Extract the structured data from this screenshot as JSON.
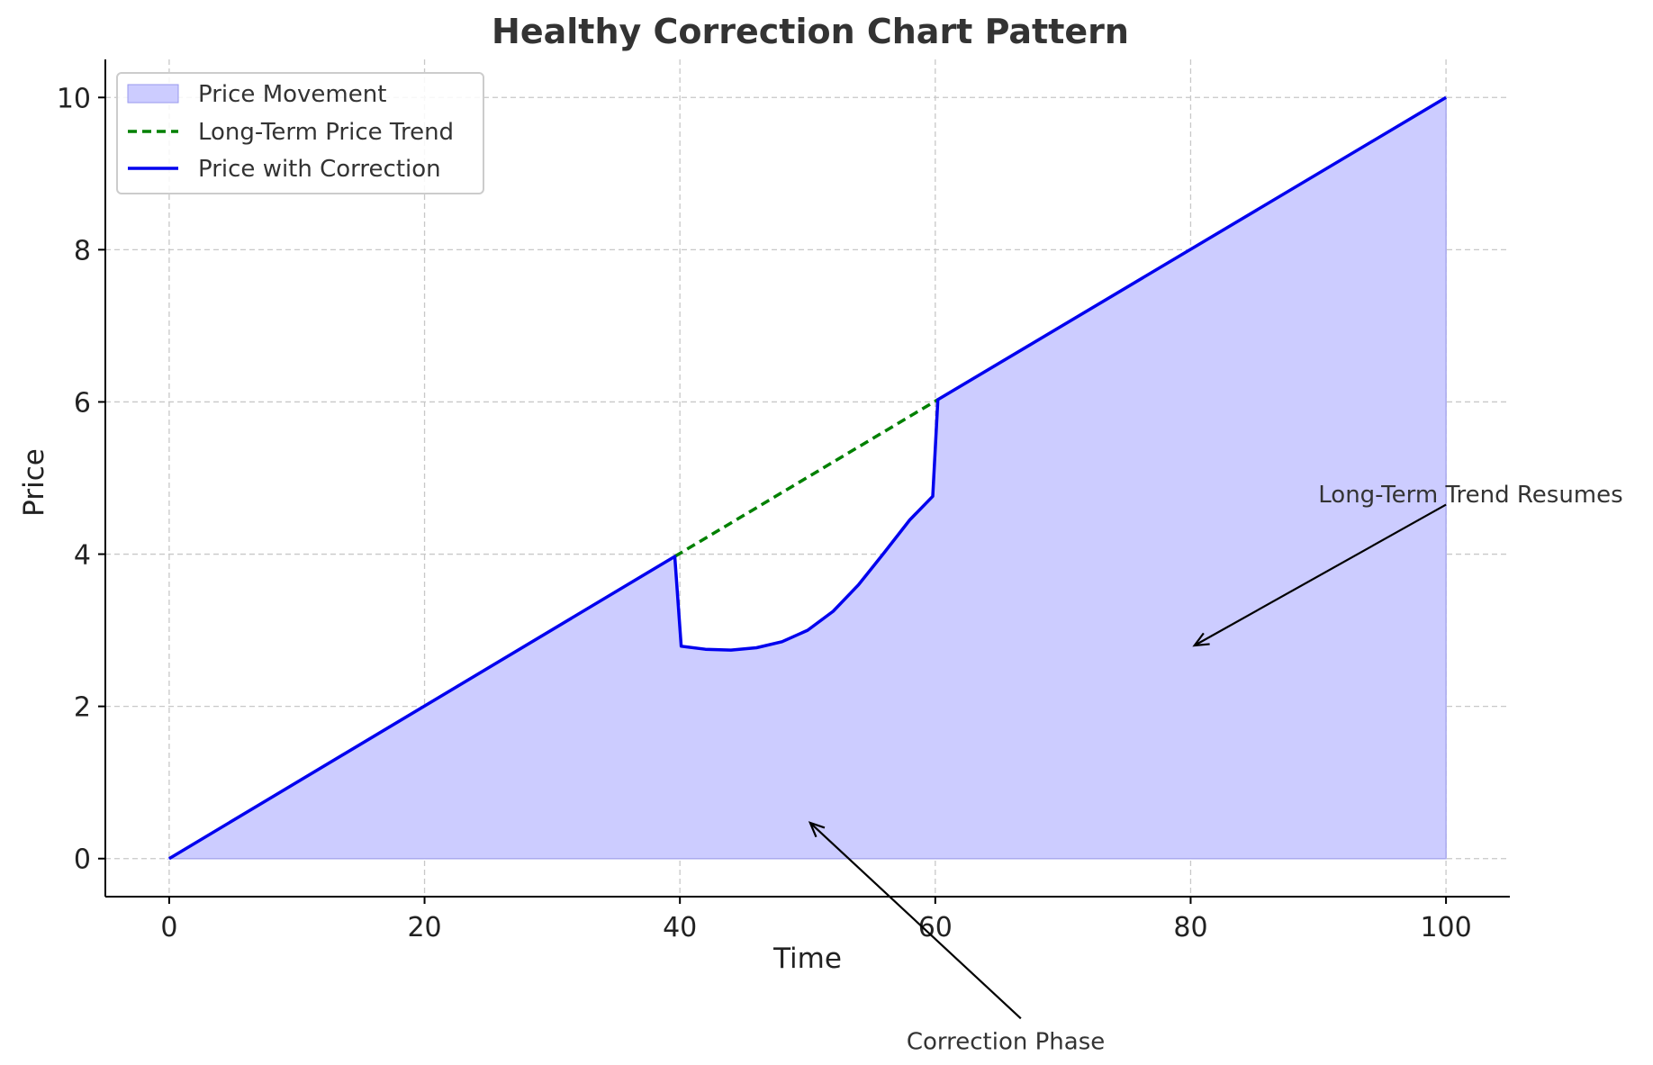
{
  "chart_data": {
    "type": "area",
    "title": "Healthy Correction Chart Pattern",
    "xlabel": "Time",
    "ylabel": "Price",
    "xlim": [
      -5,
      105
    ],
    "ylim": [
      -0.5,
      10.5
    ],
    "x_ticks": [
      0,
      20,
      40,
      60,
      80,
      100
    ],
    "y_ticks": [
      0,
      2,
      4,
      6,
      8,
      10
    ],
    "x_tick_labels": [
      "0",
      "20",
      "40",
      "60",
      "80",
      100
    ],
    "y_tick_labels": [
      "0",
      "2",
      "4",
      "6",
      "8",
      "10"
    ],
    "grid": true,
    "legend_position": "top-left",
    "series": [
      {
        "name": "Price Movement",
        "kind": "fill",
        "color": "#ccccff",
        "x": [
          0,
          39.6,
          40.1,
          42,
          44,
          46,
          48,
          50,
          52,
          54,
          56,
          58,
          59.8,
          60.2,
          100
        ],
        "y": [
          0,
          3.97,
          2.79,
          2.75,
          2.74,
          2.77,
          2.85,
          3.0,
          3.25,
          3.6,
          4.02,
          4.45,
          4.76,
          6.03,
          10
        ]
      },
      {
        "name": "Long-Term Price Trend",
        "kind": "dashed-line",
        "color": "#008000",
        "x": [
          39.6,
          60.2
        ],
        "y": [
          3.97,
          6.03
        ]
      },
      {
        "name": "Price with Correction",
        "kind": "line",
        "color": "#0000ee",
        "x": [
          0,
          39.6,
          40.1,
          42,
          44,
          46,
          48,
          50,
          52,
          54,
          56,
          58,
          59.8,
          60.2,
          100
        ],
        "y": [
          0,
          3.97,
          2.79,
          2.75,
          2.74,
          2.77,
          2.85,
          3.0,
          3.25,
          3.6,
          4.02,
          4.45,
          4.76,
          6.03,
          10
        ]
      }
    ],
    "annotations": [
      {
        "text": "Long-Term Trend Resumes",
        "xy": [
          80.3,
          2.8
        ],
        "text_xy": [
          100,
          4.65
        ]
      },
      {
        "text": "Correction Phase",
        "xy": [
          50.2,
          0.47
        ],
        "text_xy": [
          66.7,
          -2.1
        ]
      }
    ]
  }
}
